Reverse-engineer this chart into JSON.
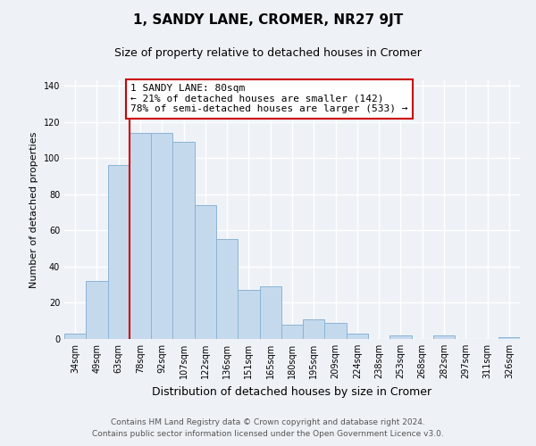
{
  "title": "1, SANDY LANE, CROMER, NR27 9JT",
  "subtitle": "Size of property relative to detached houses in Cromer",
  "xlabel": "Distribution of detached houses by size in Cromer",
  "ylabel": "Number of detached properties",
  "bar_labels": [
    "34sqm",
    "49sqm",
    "63sqm",
    "78sqm",
    "92sqm",
    "107sqm",
    "122sqm",
    "136sqm",
    "151sqm",
    "165sqm",
    "180sqm",
    "195sqm",
    "209sqm",
    "224sqm",
    "238sqm",
    "253sqm",
    "268sqm",
    "282sqm",
    "297sqm",
    "311sqm",
    "326sqm"
  ],
  "bar_values": [
    3,
    32,
    96,
    114,
    114,
    109,
    74,
    55,
    27,
    29,
    8,
    11,
    9,
    3,
    0,
    2,
    0,
    2,
    0,
    0,
    1
  ],
  "bar_color": "#c5d9ed",
  "bar_edge_color": "#8ab4d4",
  "vline_color": "#cc0000",
  "annotation_text": "1 SANDY LANE: 80sqm\n← 21% of detached houses are smaller (142)\n78% of semi-detached houses are larger (533) →",
  "annotation_box_color": "#ffffff",
  "annotation_box_edge": "#cc0000",
  "footer_line1": "Contains HM Land Registry data © Crown copyright and database right 2024.",
  "footer_line2": "Contains public sector information licensed under the Open Government Licence v3.0.",
  "ylim": [
    0,
    143
  ],
  "background_color": "#eef2f7",
  "grid_color": "#ffffff",
  "title_fontsize": 11,
  "subtitle_fontsize": 9,
  "xlabel_fontsize": 9,
  "ylabel_fontsize": 8,
  "tick_fontsize": 7,
  "annot_fontsize": 8,
  "footer_fontsize": 6.5
}
